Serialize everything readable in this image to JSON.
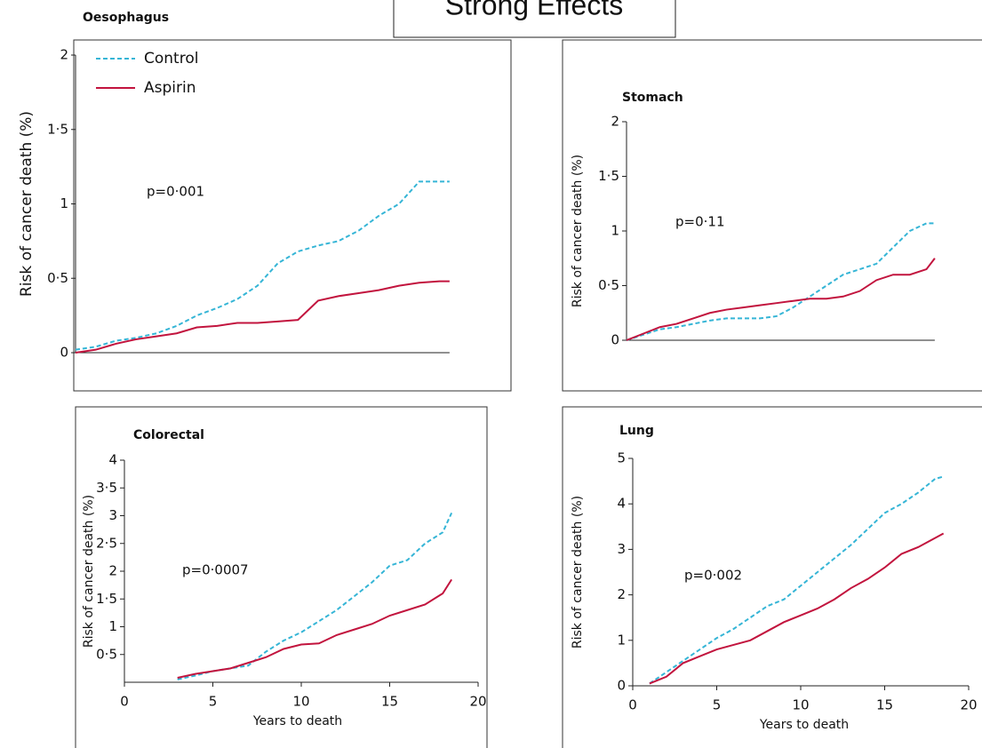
{
  "title": "Strong Effects",
  "chart_data": [
    {
      "type": "line",
      "title": "Oesophagus",
      "ylabel": "Risk of cancer death (%)",
      "annotation": "p=0·001",
      "x": [
        0,
        1,
        2,
        3,
        4,
        5,
        6,
        7,
        8,
        9,
        10,
        11,
        12,
        13,
        14,
        15,
        16,
        17,
        18,
        18.5
      ],
      "series": [
        {
          "name": "Control",
          "color": "#35b5d6",
          "style": "dashed",
          "values": [
            0.02,
            0.04,
            0.08,
            0.1,
            0.13,
            0.18,
            0.25,
            0.3,
            0.36,
            0.45,
            0.6,
            0.68,
            0.72,
            0.75,
            0.82,
            0.92,
            1.0,
            1.15,
            1.15,
            1.15
          ]
        },
        {
          "name": "Aspirin",
          "color": "#c2143e",
          "style": "solid",
          "values": [
            0,
            0.02,
            0.06,
            0.09,
            0.11,
            0.13,
            0.17,
            0.18,
            0.2,
            0.2,
            0.21,
            0.22,
            0.35,
            0.38,
            0.4,
            0.42,
            0.45,
            0.47,
            0.48,
            0.48
          ]
        }
      ],
      "xlim": [
        0,
        20
      ],
      "ylim": [
        0,
        2
      ],
      "yticks": [
        0,
        {
          "value": 0.5,
          "label": "0·5"
        },
        1,
        {
          "value": 1.5,
          "label": "1·5"
        },
        2
      ]
    },
    {
      "type": "line",
      "title": "Stomach",
      "ylabel": "Risk of cancer death (%)",
      "annotation": "p=0·11",
      "x": [
        0,
        1,
        2,
        3,
        4,
        5,
        6,
        7,
        8,
        9,
        10,
        11,
        12,
        13,
        14,
        15,
        16,
        17,
        18,
        18.5
      ],
      "series": [
        {
          "color": "#35b5d6",
          "style": "dashed",
          "values": [
            0,
            0.05,
            0.1,
            0.12,
            0.15,
            0.18,
            0.2,
            0.2,
            0.2,
            0.22,
            0.3,
            0.4,
            0.5,
            0.6,
            0.65,
            0.7,
            0.85,
            1.0,
            1.07,
            1.07
          ]
        },
        {
          "color": "#c2143e",
          "style": "solid",
          "values": [
            0,
            0.06,
            0.12,
            0.15,
            0.2,
            0.25,
            0.28,
            0.3,
            0.32,
            0.34,
            0.36,
            0.38,
            0.38,
            0.4,
            0.45,
            0.55,
            0.6,
            0.6,
            0.65,
            0.75
          ]
        }
      ],
      "xlim": [
        0,
        20
      ],
      "ylim": [
        0,
        2
      ],
      "yticks": [
        0,
        {
          "value": 0.5,
          "label": "0·5"
        },
        1,
        {
          "value": 1.5,
          "label": "1·5"
        },
        2
      ]
    },
    {
      "type": "line",
      "title": "Colorectal",
      "ylabel": "Risk of cancer death (%)",
      "xlabel": "Years to death",
      "annotation": "p=0·0007",
      "x": [
        0,
        1,
        2,
        3,
        4,
        5,
        6,
        7,
        8,
        9,
        10,
        11,
        12,
        13,
        14,
        15,
        16,
        17,
        18,
        18.5
      ],
      "series": [
        {
          "color": "#35b5d6",
          "style": "dashed",
          "values": [
            null,
            null,
            null,
            0.05,
            0.12,
            0.2,
            0.25,
            0.3,
            0.55,
            0.75,
            0.9,
            1.1,
            1.3,
            1.55,
            1.8,
            2.1,
            2.2,
            2.5,
            2.7,
            3.05
          ]
        },
        {
          "color": "#c2143e",
          "style": "solid",
          "values": [
            null,
            null,
            null,
            0.08,
            0.15,
            0.2,
            0.25,
            0.35,
            0.45,
            0.6,
            0.68,
            0.7,
            0.85,
            0.95,
            1.05,
            1.2,
            1.3,
            1.4,
            1.6,
            1.85
          ]
        }
      ],
      "xlim": [
        0,
        20
      ],
      "ylim": [
        0,
        4
      ],
      "xticks": [
        0,
        5,
        10,
        15,
        20
      ],
      "yticks": [
        {
          "value": 0.5,
          "label": "0·5"
        },
        1,
        {
          "value": 1.5,
          "label": "1·5"
        },
        2,
        {
          "value": 2.5,
          "label": "2·5"
        },
        3,
        {
          "value": 3.5,
          "label": "3·5"
        },
        4
      ]
    },
    {
      "type": "line",
      "title": "Lung",
      "ylabel": "Risk of cancer death (%)",
      "xlabel": "Years to death",
      "annotation": "p=0·002",
      "x": [
        0,
        1,
        2,
        3,
        4,
        5,
        6,
        7,
        8,
        9,
        10,
        11,
        12,
        13,
        14,
        15,
        16,
        17,
        18,
        18.5
      ],
      "series": [
        {
          "color": "#35b5d6",
          "style": "dashed",
          "values": [
            null,
            0.05,
            0.3,
            0.55,
            0.8,
            1.05,
            1.25,
            1.5,
            1.75,
            1.9,
            2.2,
            2.5,
            2.8,
            3.1,
            3.45,
            3.8,
            4.0,
            4.25,
            4.55,
            4.6
          ]
        },
        {
          "color": "#c2143e",
          "style": "solid",
          "values": [
            null,
            0.05,
            0.2,
            0.5,
            0.65,
            0.8,
            0.9,
            1.0,
            1.2,
            1.4,
            1.55,
            1.7,
            1.9,
            2.15,
            2.35,
            2.6,
            2.9,
            3.05,
            3.25,
            3.35
          ]
        }
      ],
      "xlim": [
        0,
        20
      ],
      "ylim": [
        0,
        5
      ],
      "xticks": [
        0,
        5,
        10,
        15,
        20
      ],
      "yticks": [
        0,
        1,
        2,
        3,
        4,
        5
      ]
    }
  ]
}
